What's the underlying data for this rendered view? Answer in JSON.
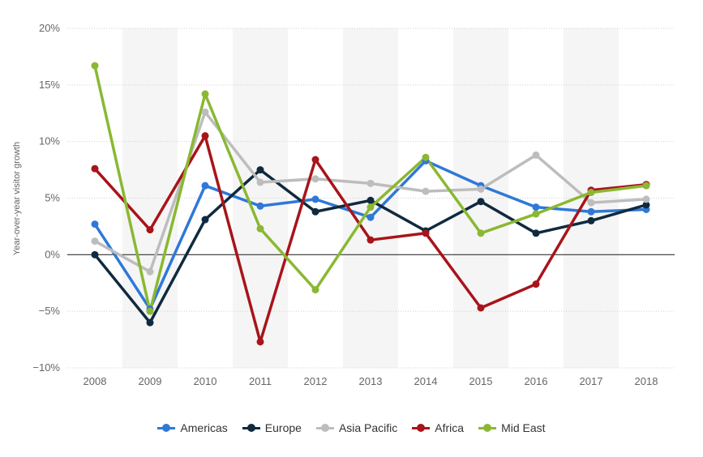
{
  "chart_data": {
    "type": "line",
    "ylabel": "Year-over-year visitor growth",
    "xlabel": "",
    "categories": [
      "2008",
      "2009",
      "2010",
      "2011",
      "2012",
      "2013",
      "2014",
      "2015",
      "2016",
      "2017",
      "2018"
    ],
    "ylim": [
      -10,
      20
    ],
    "yticks": [
      -10,
      -5,
      0,
      5,
      10,
      15,
      20
    ],
    "ytick_labels": [
      "−10%",
      "−5%",
      "0%",
      "5%",
      "10%",
      "15%",
      "20%"
    ],
    "grid": "horizontal dotted, alternating shaded year bands",
    "legend_position": "bottom-center",
    "series": [
      {
        "name": "Americas",
        "color": "#2f78d8",
        "values": [
          2.7,
          -4.8,
          6.1,
          4.3,
          4.9,
          3.3,
          8.3,
          6.1,
          4.2,
          3.8,
          4.0
        ]
      },
      {
        "name": "Europe",
        "color": "#0f2a3f",
        "values": [
          0.0,
          -6.0,
          3.1,
          7.5,
          3.8,
          4.8,
          2.1,
          4.7,
          1.9,
          3.0,
          4.4
        ]
      },
      {
        "name": "Asia Pacific",
        "color": "#bdbdbd",
        "values": [
          1.2,
          -1.5,
          12.6,
          6.4,
          6.7,
          6.3,
          5.6,
          5.8,
          8.8,
          4.6,
          4.9
        ]
      },
      {
        "name": "Africa",
        "color": "#a8141a",
        "values": [
          7.6,
          2.2,
          10.5,
          -7.7,
          8.4,
          1.3,
          1.9,
          -4.7,
          -2.6,
          5.7,
          6.2
        ]
      },
      {
        "name": "Mid East",
        "color": "#8ab832",
        "values": [
          16.7,
          -5.0,
          14.2,
          2.3,
          -3.1,
          4.2,
          8.6,
          1.9,
          3.6,
          5.5,
          6.1
        ]
      }
    ]
  }
}
